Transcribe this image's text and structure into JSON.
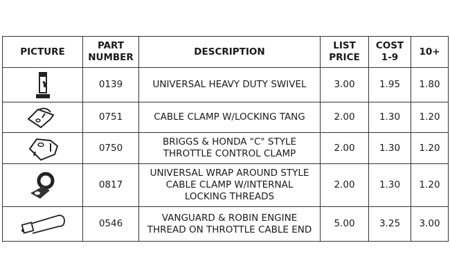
{
  "headers": {
    "picture": "PICTURE",
    "part_number": "PART\nNUMBER",
    "description": "DESCRIPTION",
    "list_price": "LIST\nPRICE",
    "cost_1_9": "COST\n1-9",
    "cost_10": "10+"
  },
  "rows": [
    {
      "icon": "swivel-icon",
      "part": "0139",
      "description": "UNIVERSAL HEAVY DUTY SWIVEL",
      "list": "3.00",
      "cost": "1.95",
      "cost10": "1.80"
    },
    {
      "icon": "cable-clamp-icon",
      "part": "0751",
      "description": "CABLE CLAMP W/LOCKING TANG",
      "list": "2.00",
      "cost": "1.30",
      "cost10": "1.20"
    },
    {
      "icon": "throttle-clamp-icon",
      "part": "0750",
      "description": "BRIGGS & HONDA \"C\" STYLE\nTHROTTLE CONTROL CLAMP",
      "list": "2.00",
      "cost": "1.30",
      "cost10": "1.20"
    },
    {
      "icon": "wrap-clamp-icon",
      "part": "0817",
      "description": "UNIVERSAL WRAP AROUND STYLE\nCABLE CLAMP W/INTERNAL\nLOCKING THREADS",
      "list": "2.00",
      "cost": "1.30",
      "cost10": "1.20"
    },
    {
      "icon": "cable-end-icon",
      "part": "0546",
      "description": "VANGUARD & ROBIN ENGINE\nTHREAD ON THROTTLE CABLE END",
      "list": "5.00",
      "cost": "3.25",
      "cost10": "3.00"
    }
  ]
}
